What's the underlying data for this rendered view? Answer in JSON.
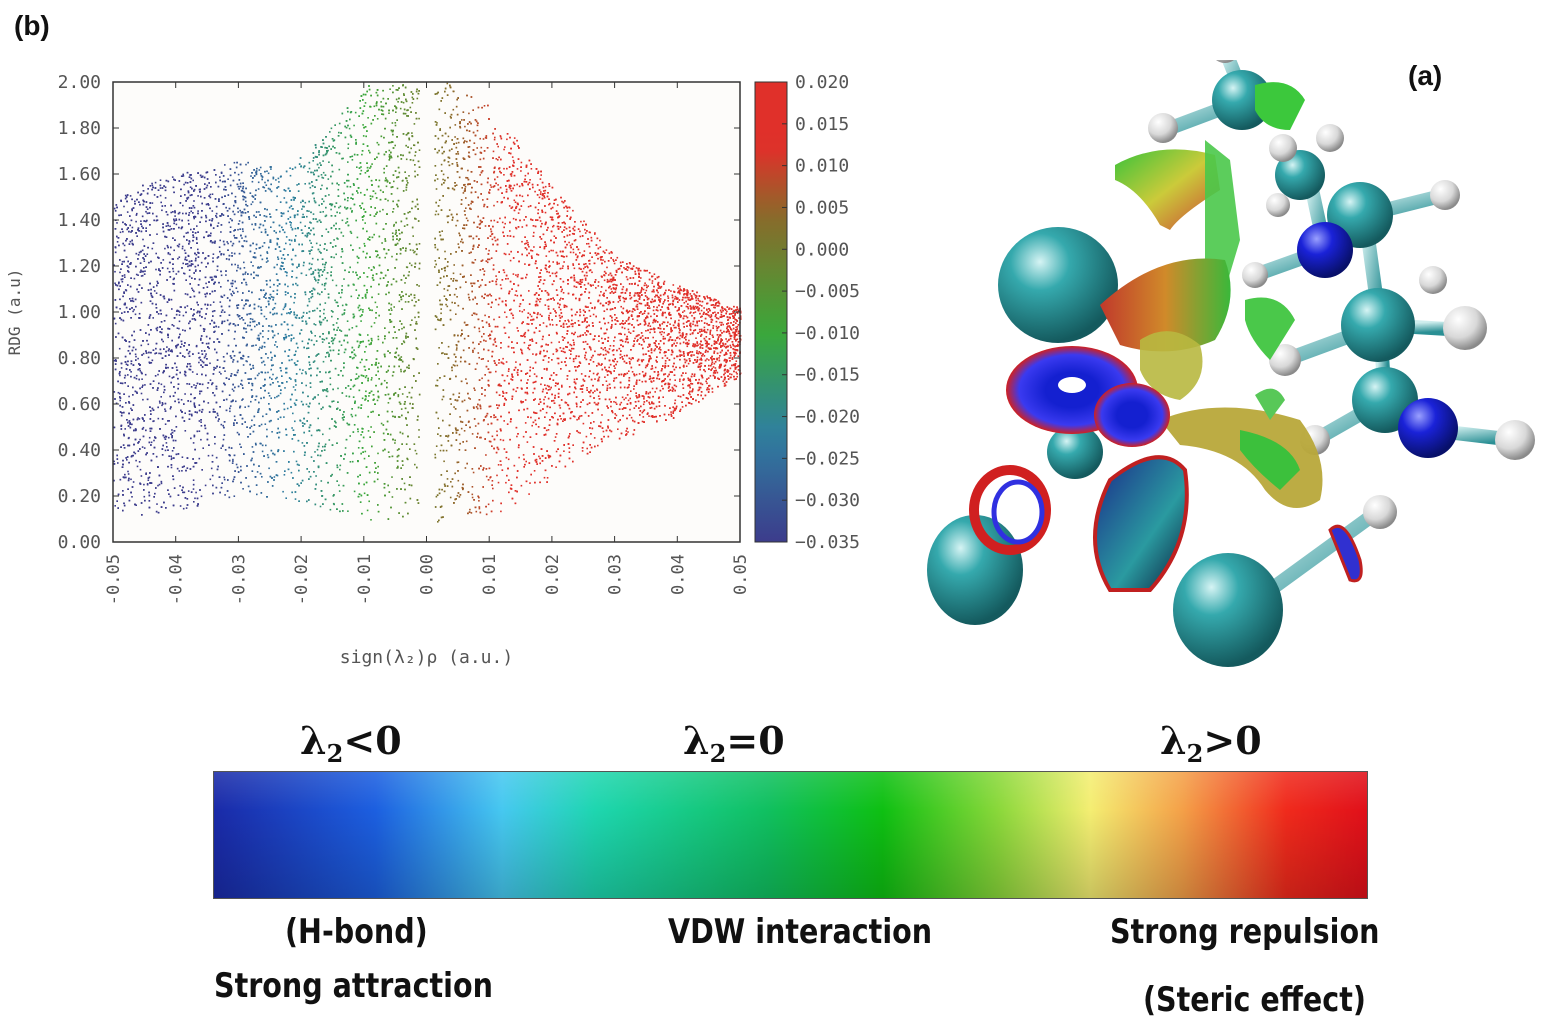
{
  "panel_labels": {
    "b": "(b)",
    "a": "(a)"
  },
  "colors": {
    "attraction": "#3c3c8c",
    "vdw": "#3aa83a",
    "repulsion": "#e0302a",
    "carbon_atom": "#2fa3a8",
    "nitrogen_atom": "#1a22d8",
    "hydrogen_atom": "#e8e8e8"
  },
  "chart_data": [
    {
      "type": "scatter",
      "title": "",
      "xlabel": "sign(λ₂)ρ (a.u.)",
      "ylabel": "RDG (a.u)",
      "xlim": [
        -0.05,
        0.05
      ],
      "ylim": [
        0.0,
        2.0
      ],
      "x_ticks": [
        "-0.05",
        "-0.04",
        "-0.03",
        "-0.02",
        "-0.01",
        "0.00",
        "0.01",
        "0.02",
        "0.03",
        "0.04",
        "0.05"
      ],
      "y_ticks": [
        "0.00",
        "0.20",
        "0.40",
        "0.60",
        "0.80",
        "1.00",
        "1.20",
        "1.40",
        "1.60",
        "1.80",
        "2.00"
      ],
      "grid": false,
      "colorbar": {
        "range": [
          -0.035,
          0.02
        ],
        "ticks": [
          "0.020",
          "0.015",
          "0.010",
          "0.005",
          "0.000",
          "−0.005",
          "−0.010",
          "−0.015",
          "−0.020",
          "−0.025",
          "−0.030",
          "−0.035"
        ],
        "colormap": [
          "#3c3c8c",
          "#2f7fa0",
          "#3aa83a",
          "#8a6a2a",
          "#e0302a"
        ]
      },
      "envelope": {
        "upper_left": [
          [
            -0.05,
            1.48
          ],
          [
            -0.045,
            1.56
          ],
          [
            -0.04,
            1.6
          ],
          [
            -0.03,
            1.66
          ],
          [
            -0.022,
            1.63
          ],
          [
            -0.017,
            1.75
          ],
          [
            -0.012,
            1.92
          ],
          [
            -0.009,
            2.0
          ]
        ],
        "lower_left": [
          [
            -0.05,
            0.1
          ],
          [
            -0.04,
            0.14
          ],
          [
            -0.03,
            0.2
          ],
          [
            -0.02,
            0.18
          ],
          [
            -0.01,
            0.1
          ],
          [
            -0.003,
            0.06
          ]
        ],
        "upper_right": [
          [
            0.003,
            2.0
          ],
          [
            0.01,
            1.9
          ],
          [
            0.02,
            1.55
          ],
          [
            0.03,
            1.25
          ],
          [
            0.04,
            1.12
          ],
          [
            0.05,
            1.02
          ]
        ],
        "lower_right": [
          [
            0.003,
            0.06
          ],
          [
            0.008,
            0.08
          ],
          [
            0.015,
            0.18
          ],
          [
            0.025,
            0.38
          ],
          [
            0.04,
            0.55
          ],
          [
            0.05,
            0.72
          ]
        ]
      }
    }
  ],
  "scale": {
    "left_label": "λ₂<0",
    "mid_label": "λ₂=0",
    "right_label": "λ₂>0",
    "left_sym": "λ",
    "left_sub": "2",
    "left_rel": "<0",
    "mid_sym": "λ",
    "mid_sub": "2",
    "mid_rel": "=0",
    "right_sym": "λ",
    "right_sub": "2",
    "right_rel": ">0",
    "caption_hbond": "(H-bond)",
    "caption_attraction": "Strong attraction",
    "caption_vdw": "VDW interaction",
    "caption_repulsion": "Strong repulsion",
    "caption_steric": "(Steric effect)"
  }
}
